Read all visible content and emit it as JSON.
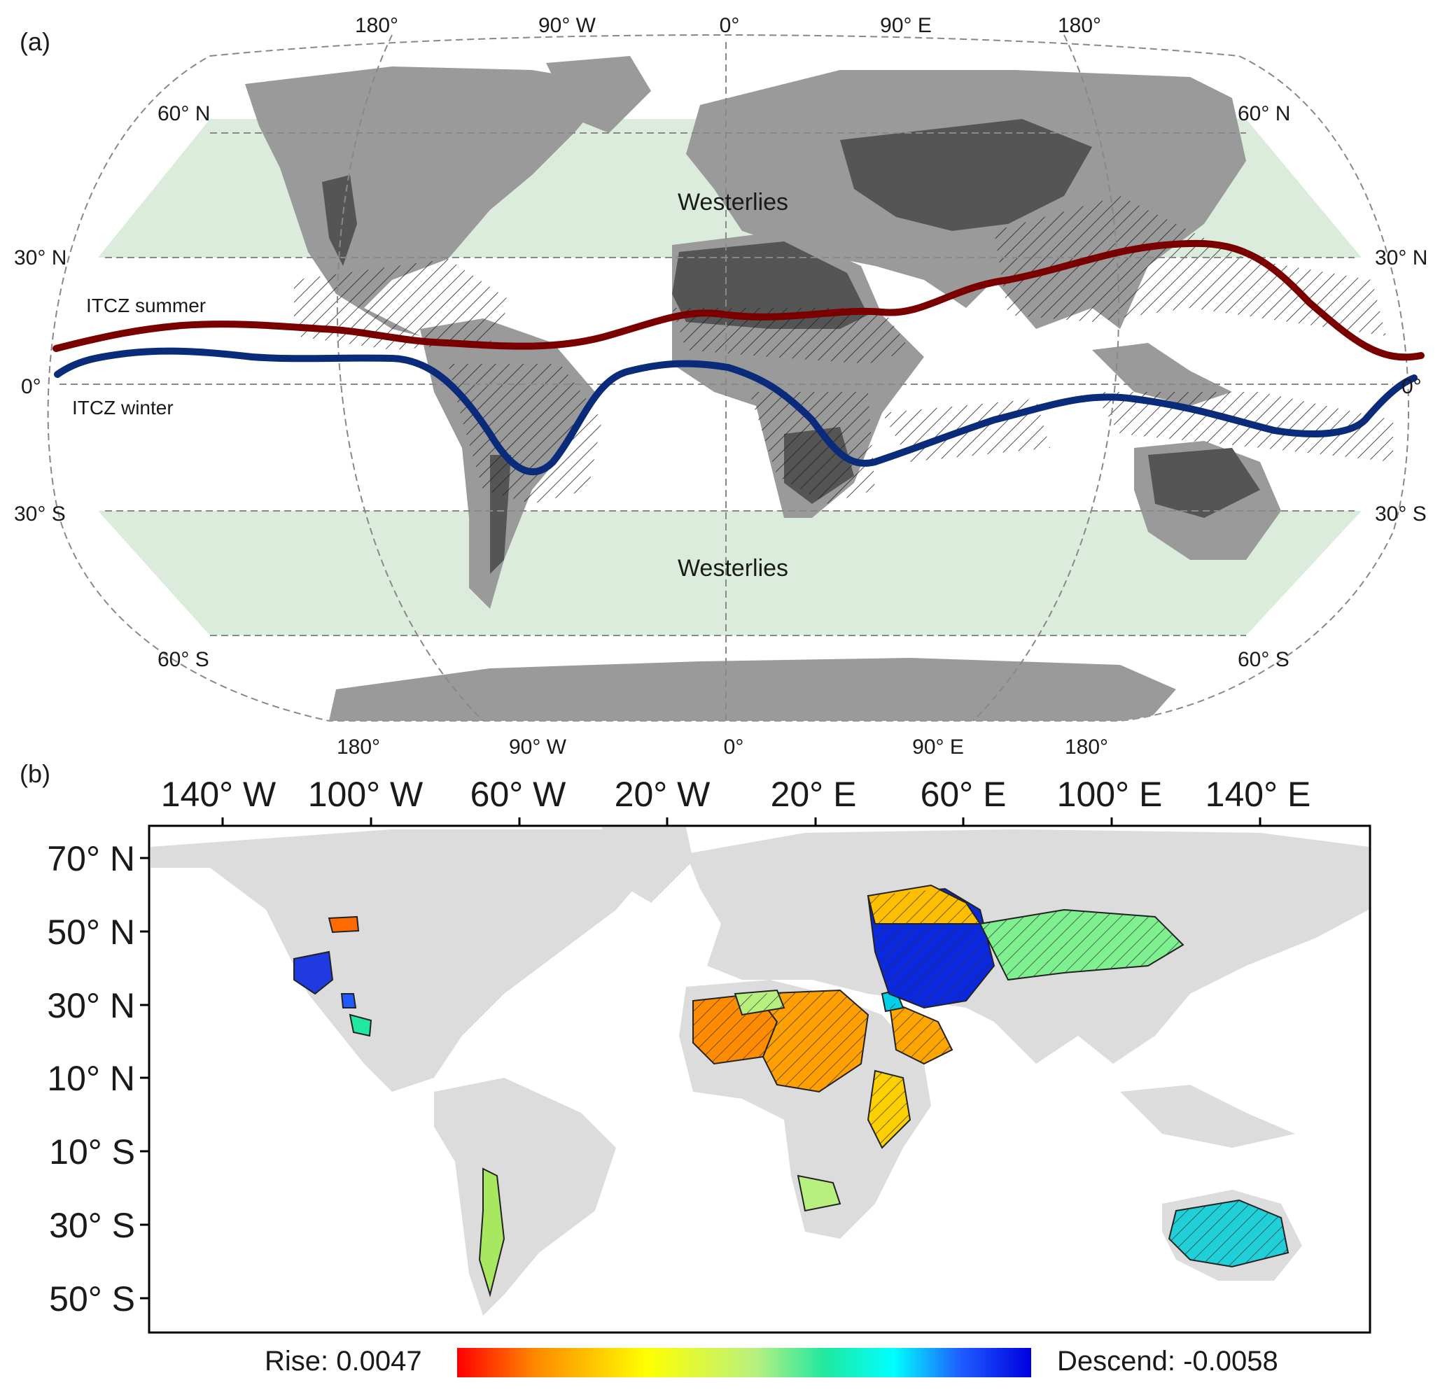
{
  "panel_a": {
    "label": "(a)",
    "lon_labels_top": [
      "180°",
      "90° W",
      "0°",
      "90° E",
      "180°"
    ],
    "lon_labels_bottom": [
      "180°",
      "90° W",
      "0°",
      "90° E",
      "180°"
    ],
    "lat_labels_left": [
      "60° N",
      "30° N",
      "0°",
      "30° S",
      "60° S"
    ],
    "lat_labels_right": [
      "60° N",
      "30° N",
      "0°",
      "30° S",
      "60° S"
    ],
    "westerlies_north": "Westerlies",
    "westerlies_south": "Westerlies",
    "itcz_summer_label": "ITCZ summer",
    "itcz_winter_label": "ITCZ winter",
    "colors": {
      "land": "#9a9a9a",
      "dryland": "#555555",
      "westerlies_band": "#d8ead8",
      "itcz_summer": "#7a0000",
      "itcz_winter": "#0a2a7a",
      "graticule": "#888888"
    }
  },
  "panel_b": {
    "label": "(b)",
    "lon_ticks": [
      "140° W",
      "100° W",
      "60° W",
      "20° W",
      "20° E",
      "60° E",
      "100° E",
      "140° E"
    ],
    "lat_ticks": [
      "70° N",
      "50° N",
      "30° N",
      "10° N",
      "10° S",
      "30° S",
      "50° S"
    ],
    "colorbar": {
      "rise_label": "Rise: 0.0047",
      "descend_label": "Descend: -0.0058",
      "colors": [
        "#ff0000",
        "#ff8c00",
        "#ffff00",
        "#b8f080",
        "#20e8a0",
        "#00ffff",
        "#1e5aff",
        "#0000e0"
      ]
    },
    "colors": {
      "land": "#dcdcdc",
      "frame": "#000000"
    }
  }
}
